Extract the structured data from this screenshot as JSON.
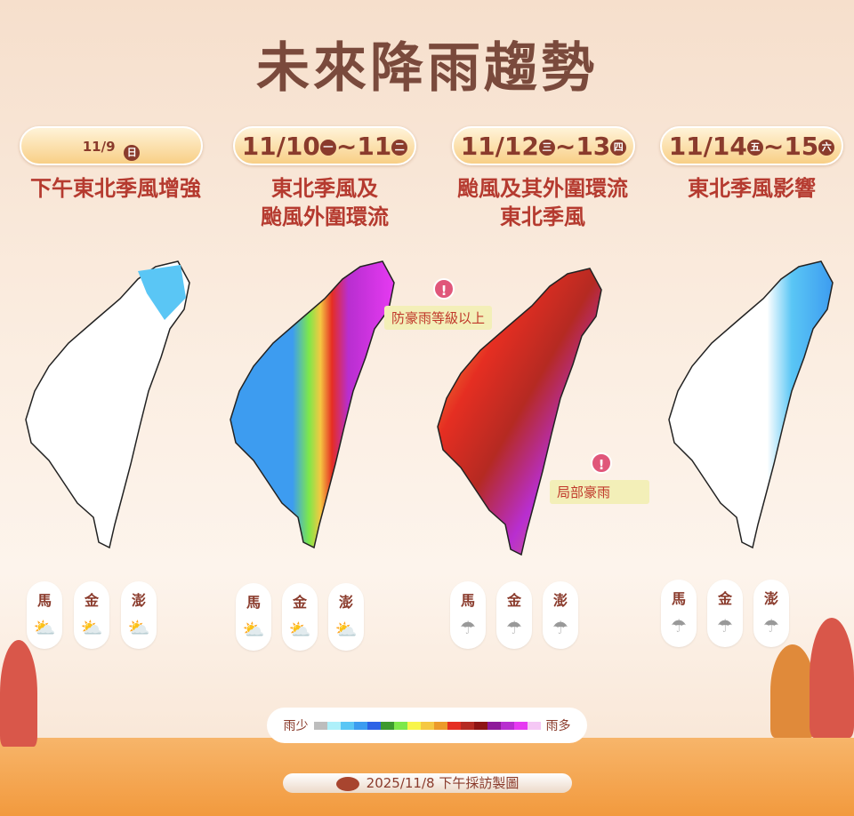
{
  "title": "未來降雨趨勢",
  "panels": [
    {
      "date": "11/9",
      "day": "日",
      "desc": [
        "下午東北季風增強"
      ],
      "islands": [
        "馬",
        "金",
        "澎"
      ],
      "weather": "partly-cloudy"
    },
    {
      "date": "11/10",
      "day": "一",
      "date2": "11",
      "day2": "二",
      "desc": [
        "東北季風及",
        "颱風外圍環流"
      ],
      "islands": [
        "馬",
        "金",
        "澎"
      ],
      "weather": "partly-cloudy"
    },
    {
      "date": "11/12",
      "day": "三",
      "date2": "13",
      "day2": "四",
      "desc": [
        "颱風及其外圍環流",
        "東北季風"
      ],
      "islands": [
        "馬",
        "金",
        "澎"
      ],
      "weather": "rain"
    },
    {
      "date": "11/14",
      "day": "五",
      "date2": "15",
      "day2": "六",
      "desc": [
        "東北季風影響"
      ],
      "islands": [
        "馬",
        "金",
        "澎"
      ],
      "weather": "rain"
    }
  ],
  "notes": {
    "heavy": "防豪雨等級以上",
    "local": "局部豪雨"
  },
  "legend": {
    "low": "雨少",
    "high": "雨多",
    "colors": [
      "#bdbdbd",
      "#aef0fa",
      "#5ac6f5",
      "#3d9cf0",
      "#2d63e6",
      "#3d9a2e",
      "#7ee84a",
      "#f8f54a",
      "#f5c842",
      "#ec9a2a",
      "#e52e22",
      "#b52a22",
      "#8e1414",
      "#8e1a9a",
      "#b82ed0",
      "#e63af2",
      "#f5c8f5"
    ]
  },
  "footer": "2025/11/8 下午採訪製圖"
}
